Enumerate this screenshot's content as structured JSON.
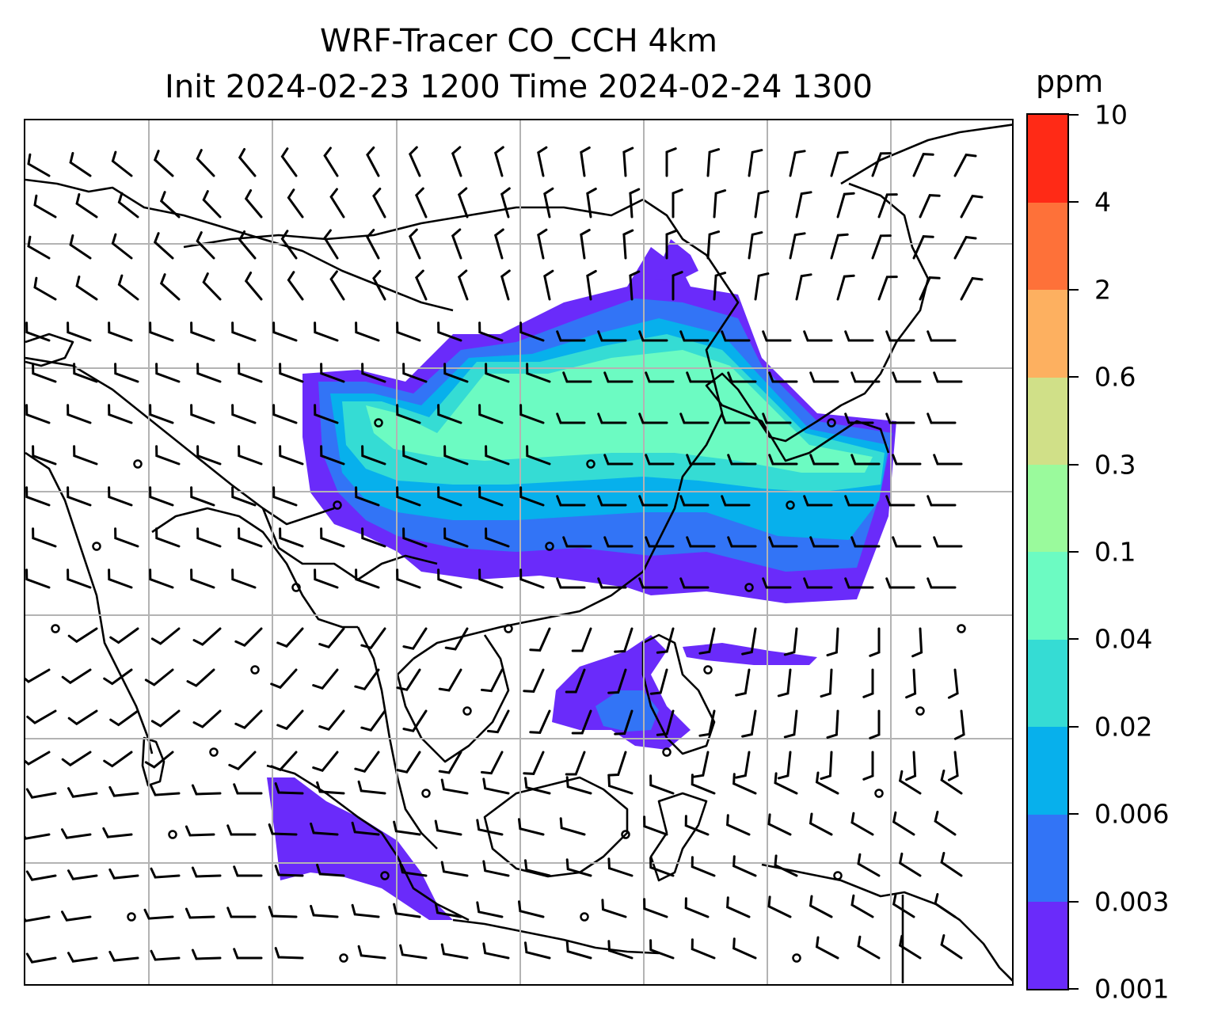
{
  "title": {
    "line1": "WRF-Tracer CO_CCH 4km",
    "line2": "Init 2024-02-23 1200 Time 2024-02-24 1300"
  },
  "colorbar": {
    "unit": "ppm",
    "levels": [
      "0.001",
      "0.003",
      "0.006",
      "0.02",
      "0.04",
      "0.1",
      "0.3",
      "0.6",
      "2",
      "4",
      "10"
    ],
    "colors": [
      "#6a2bfa",
      "#3274f6",
      "#07b0ec",
      "#35dcd4",
      "#6cfbc2",
      "#9afa9c",
      "#d0e088",
      "#fdb060",
      "#fe7139",
      "#ff2a16"
    ]
  },
  "map": {
    "gridlines": true,
    "coastline_color": "#000000",
    "wind_barbs": true
  }
}
